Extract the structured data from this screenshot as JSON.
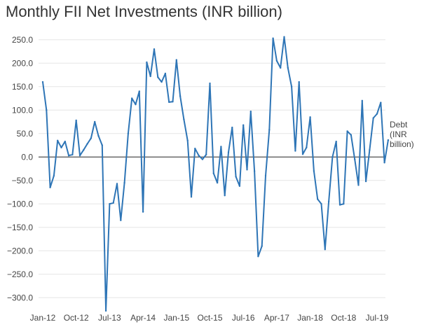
{
  "chart_data": {
    "type": "line",
    "title": "Monthly FII Net Investments (INR billion)",
    "xlabel": "",
    "ylabel": "",
    "ylim": [
      -325,
      275
    ],
    "yticks": [
      -300,
      -250,
      -200,
      -150,
      -100,
      -50,
      0,
      50,
      100,
      150,
      200,
      250
    ],
    "ytick_labels": [
      "−300.0",
      "−250.0",
      "−200.0",
      "−150.0",
      "−100.0",
      "−50.0",
      "0.0",
      "50.0",
      "100.0",
      "150.0",
      "200.0",
      "250.0"
    ],
    "xtick_labels": [
      "Jan-12",
      "Oct-12",
      "Jul-13",
      "Apr-14",
      "Jan-15",
      "Oct-15",
      "Jul-16",
      "Apr-17",
      "Jan-18",
      "Oct-18",
      "Jul-19"
    ],
    "xtick_index": [
      0,
      9,
      18,
      27,
      36,
      45,
      54,
      63,
      72,
      81,
      90
    ],
    "grid": true,
    "legend": "right",
    "series": [
      {
        "name": "Debt (INR billion)",
        "name_lines": [
          "Debt",
          "(INR",
          "billion)"
        ],
        "color": "#2e75b6",
        "values": [
          160,
          100,
          -65,
          -40,
          35,
          20,
          33,
          3,
          5,
          78,
          3,
          15,
          28,
          40,
          75,
          45,
          25,
          -328,
          -100,
          -98,
          -57,
          -135,
          -55,
          50,
          125,
          112,
          140,
          -117,
          202,
          172,
          230,
          170,
          160,
          178,
          117,
          118,
          207,
          130,
          80,
          35,
          -85,
          18,
          3,
          -5,
          5,
          157,
          -35,
          -55,
          22,
          -82,
          10,
          63,
          -42,
          -62,
          68,
          -27,
          97,
          -30,
          -212,
          -190,
          -40,
          58,
          253,
          205,
          190,
          256,
          190,
          150,
          13,
          160,
          6,
          20,
          85,
          -30,
          -90,
          -100,
          -197,
          -95,
          0,
          33,
          -102,
          -100,
          55,
          47,
          -5,
          -60,
          120,
          -52,
          15,
          83,
          92,
          116,
          -12,
          36
        ]
      }
    ]
  }
}
